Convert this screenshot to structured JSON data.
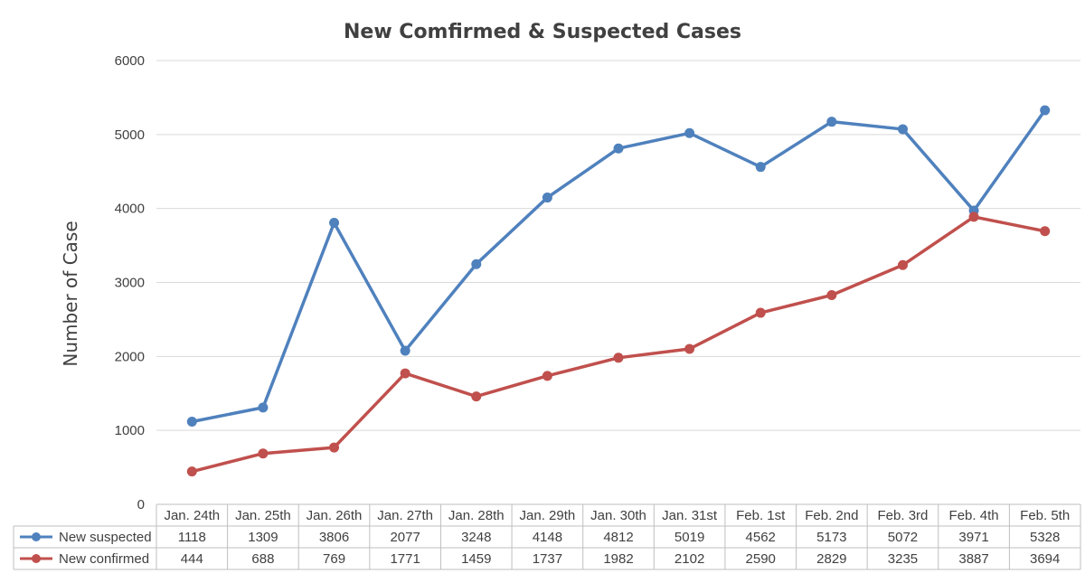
{
  "chart_data": {
    "type": "line",
    "title": "New Comfirmed & Suspected Cases",
    "ylabel": "Number of Case",
    "xlabel": "",
    "ylim": [
      0,
      6000
    ],
    "yticks": [
      0,
      1000,
      2000,
      3000,
      4000,
      5000,
      6000
    ],
    "grid": true,
    "legend": "data-table-left",
    "categories": [
      "Jan. 24th",
      "Jan. 25th",
      "Jan. 26th",
      "Jan. 27th",
      "Jan. 28th",
      "Jan. 29th",
      "Jan. 30th",
      "Jan. 31st",
      "Feb. 1st",
      "Feb. 2nd",
      "Feb. 3rd",
      "Feb. 4th",
      "Feb. 5th"
    ],
    "series": [
      {
        "name": "New suspected",
        "color": "#4f81bd",
        "values": [
          1118,
          1309,
          3806,
          2077,
          3248,
          4148,
          4812,
          5019,
          4562,
          5173,
          5072,
          3971,
          5328
        ]
      },
      {
        "name": "New confirmed",
        "color": "#c0504d",
        "values": [
          444,
          688,
          769,
          1771,
          1459,
          1737,
          1982,
          2102,
          2590,
          2829,
          3235,
          3887,
          3694
        ]
      }
    ]
  }
}
